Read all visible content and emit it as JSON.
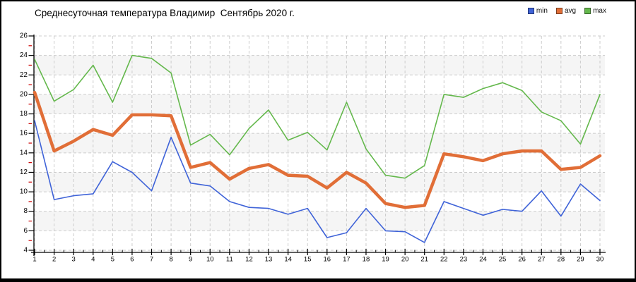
{
  "chart_data": {
    "type": "line",
    "title": "Среднесуточная температура Владимир  Сентябрь 2020 г.",
    "xlabel": "",
    "ylabel": "",
    "x": [
      1,
      2,
      3,
      4,
      5,
      6,
      7,
      8,
      9,
      10,
      11,
      12,
      13,
      14,
      15,
      16,
      17,
      18,
      19,
      20,
      21,
      22,
      23,
      24,
      25,
      26,
      27,
      28,
      29,
      30
    ],
    "xlim": [
      1,
      30
    ],
    "ylim": [
      4,
      26
    ],
    "ytick_step": 2,
    "grid": true,
    "legend_position": "top-right",
    "series": [
      {
        "name": "min",
        "color": "#3f63d8",
        "width": 1.6,
        "values": [
          17.3,
          9.2,
          9.6,
          9.8,
          13.1,
          12.0,
          10.1,
          15.6,
          10.9,
          10.6,
          9.0,
          8.4,
          8.3,
          7.7,
          8.3,
          5.3,
          5.8,
          8.3,
          6.0,
          5.9,
          4.8,
          9.0,
          8.3,
          7.6,
          8.2,
          8.0,
          10.1,
          7.5,
          10.8,
          9.1
        ]
      },
      {
        "name": "avg",
        "color": "#e16e37",
        "width": 4.5,
        "values": [
          20.2,
          14.2,
          15.2,
          16.4,
          15.8,
          17.9,
          17.9,
          17.8,
          12.5,
          13.0,
          11.3,
          12.4,
          12.8,
          11.7,
          11.6,
          10.4,
          12.0,
          10.9,
          8.8,
          8.4,
          8.6,
          13.9,
          13.6,
          13.2,
          13.9,
          14.2,
          14.2,
          12.3,
          12.5,
          13.7
        ]
      },
      {
        "name": "max",
        "color": "#64b84c",
        "width": 1.6,
        "values": [
          23.6,
          19.3,
          20.5,
          23.0,
          19.2,
          24.0,
          23.7,
          22.2,
          14.8,
          15.9,
          13.8,
          16.5,
          18.4,
          15.3,
          16.1,
          14.3,
          19.2,
          14.4,
          11.7,
          11.4,
          12.7,
          20.0,
          19.7,
          20.6,
          21.2,
          20.4,
          18.2,
          17.3,
          14.9,
          20.0
        ]
      }
    ],
    "style": {
      "band_fill": "#f5f5f5",
      "grid_color": "#cccccc",
      "axis_color": "#000000",
      "minor_tick_color": "#cc0000",
      "label_color": "#000000",
      "frame_border_color": "#000000",
      "background": "#ffffff"
    }
  }
}
